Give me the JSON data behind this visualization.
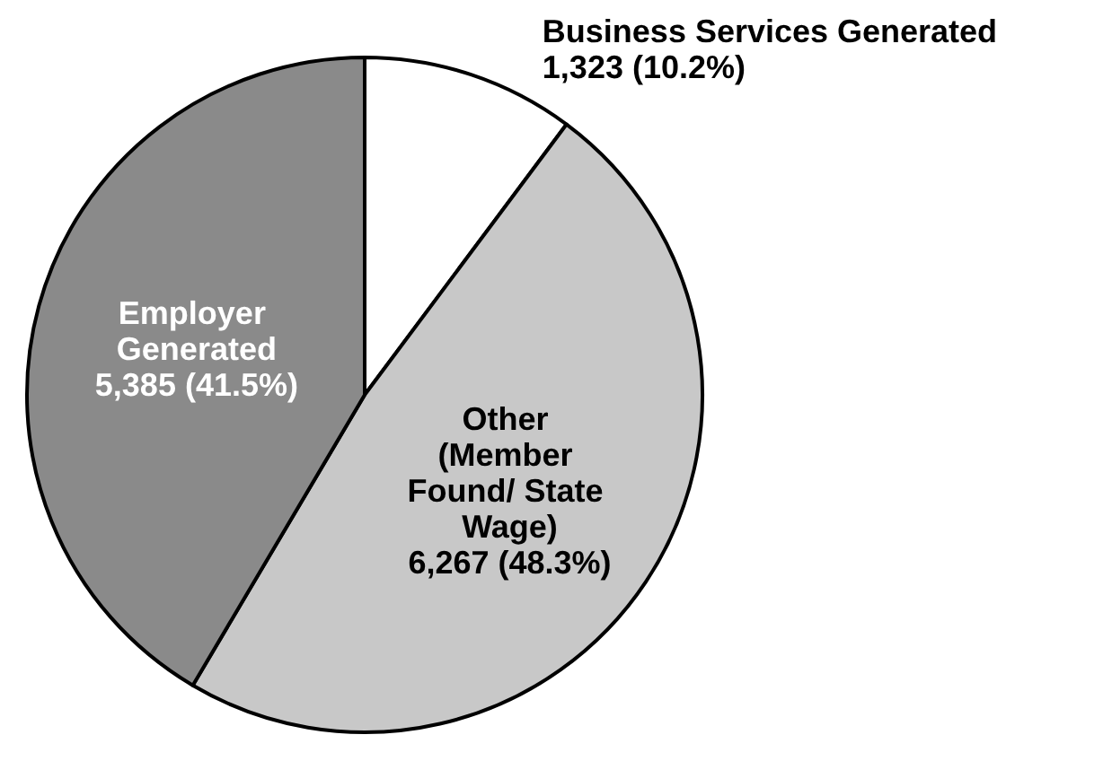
{
  "chart_data": {
    "type": "pie",
    "categories": [
      "Business Services Generated",
      "Other (Member Found/ State Wage)",
      "Employer Generated"
    ],
    "values": [
      1323,
      6267,
      5385
    ],
    "value_labels": [
      "1,323 (10.2%)",
      "6,267 (48.3%)",
      "5,385 (41.5%)"
    ],
    "colors": [
      "#ffffff",
      "#c8c8c8",
      "#8a8a8a"
    ],
    "legend": false
  }
}
